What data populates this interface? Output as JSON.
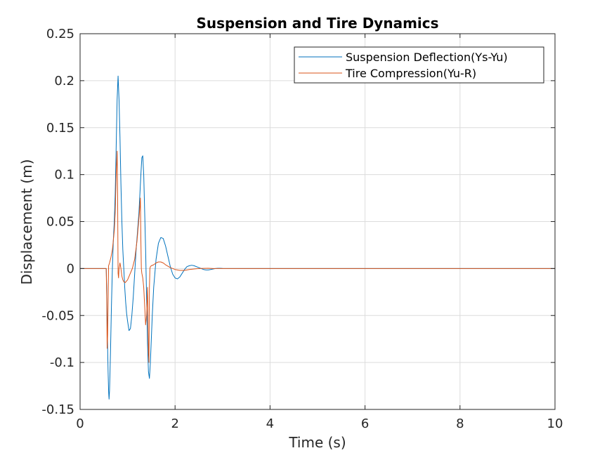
{
  "chart_data": {
    "type": "line",
    "title": "Suspension and Tire Dynamics",
    "xlabel": "Time (s)",
    "ylabel": "Displacement (m)",
    "xlim": [
      0,
      10
    ],
    "ylim": [
      -0.15,
      0.25
    ],
    "xticks": [
      0,
      2,
      4,
      6,
      8,
      10
    ],
    "yticks": [
      -0.15,
      -0.1,
      -0.05,
      0,
      0.05,
      0.1,
      0.15,
      0.2,
      0.25
    ],
    "xtick_labels": [
      "0",
      "2",
      "4",
      "6",
      "8",
      "10"
    ],
    "ytick_labels": [
      "-0.15",
      "-0.1",
      "-0.05",
      "0",
      "0.05",
      "0.1",
      "0.15",
      "0.2",
      "0.25"
    ],
    "grid": true,
    "legend_position": "top-right",
    "series": [
      {
        "name": "Suspension Deflection(Ys-Yu)",
        "color": "#0072BD",
        "x": [
          0,
          0.55,
          0.56,
          0.57,
          0.58,
          0.59,
          0.6,
          0.61,
          0.62,
          0.64,
          0.66,
          0.68,
          0.7,
          0.72,
          0.74,
          0.76,
          0.78,
          0.8,
          0.82,
          0.84,
          0.86,
          0.88,
          0.9,
          0.92,
          0.94,
          0.96,
          0.98,
          1.0,
          1.03,
          1.06,
          1.09,
          1.12,
          1.15,
          1.18,
          1.21,
          1.24,
          1.26,
          1.28,
          1.3,
          1.32,
          1.34,
          1.36,
          1.38,
          1.4,
          1.42,
          1.44,
          1.46,
          1.48,
          1.5,
          1.52,
          1.55,
          1.6,
          1.65,
          1.7,
          1.75,
          1.8,
          1.85,
          1.9,
          1.95,
          2.0,
          2.05,
          2.1,
          2.15,
          2.2,
          2.25,
          2.3,
          2.35,
          2.4,
          2.45,
          2.5,
          2.55,
          2.6,
          2.65,
          2.7,
          2.75,
          2.8,
          2.85,
          2.9,
          2.95,
          3.0,
          3.5,
          4.0,
          6.0,
          8.0,
          10.0
        ],
        "y": [
          0,
          0,
          -0.02,
          -0.06,
          -0.085,
          -0.11,
          -0.13,
          -0.139,
          -0.13,
          -0.09,
          -0.04,
          0.0,
          0.03,
          0.05,
          0.08,
          0.13,
          0.18,
          0.205,
          0.18,
          0.14,
          0.09,
          0.05,
          0.02,
          0.0,
          -0.02,
          -0.036,
          -0.048,
          -0.056,
          -0.066,
          -0.064,
          -0.05,
          -0.03,
          -0.005,
          0.02,
          0.04,
          0.06,
          0.08,
          0.1,
          0.118,
          0.12,
          0.1,
          0.06,
          0.02,
          -0.03,
          -0.08,
          -0.11,
          -0.117,
          -0.1,
          -0.075,
          -0.05,
          -0.02,
          0.01,
          0.027,
          0.033,
          0.032,
          0.024,
          0.013,
          0.002,
          -0.006,
          -0.01,
          -0.011,
          -0.009,
          -0.005,
          -0.001,
          0.002,
          0.003,
          0.0035,
          0.003,
          0.002,
          0.001,
          0.0,
          -0.001,
          -0.0015,
          -0.0015,
          -0.001,
          -0.0005,
          0.0,
          0.0003,
          0.0003,
          0.0001,
          0.0,
          0,
          0,
          0,
          0
        ]
      },
      {
        "name": "Tire Compression(Yu-R)",
        "color": "#D95319",
        "x": [
          0,
          0.5,
          0.55,
          0.56,
          0.57,
          0.58,
          0.6,
          0.62,
          0.65,
          0.68,
          0.7,
          0.72,
          0.74,
          0.76,
          0.78,
          0.79,
          0.8,
          0.81,
          0.82,
          0.84,
          0.86,
          0.88,
          0.9,
          0.92,
          0.95,
          1.0,
          1.05,
          1.1,
          1.15,
          1.2,
          1.25,
          1.27,
          1.28,
          1.29,
          1.3,
          1.32,
          1.34,
          1.36,
          1.38,
          1.4,
          1.42,
          1.44,
          1.45,
          1.46,
          1.47,
          1.48,
          1.5,
          1.55,
          1.6,
          1.65,
          1.7,
          1.75,
          1.8,
          1.9,
          2.0,
          2.1,
          2.2,
          2.3,
          2.4,
          2.5,
          2.6,
          2.7,
          2.8,
          3.0,
          4.0,
          6.0,
          8.0,
          10.0
        ],
        "y": [
          0,
          0,
          0.0,
          -0.03,
          -0.085,
          -0.07,
          0.003,
          0.006,
          0.012,
          0.02,
          0.03,
          0.04,
          0.06,
          0.1,
          0.125,
          0.08,
          -0.005,
          -0.01,
          0.0,
          0.006,
          0.0,
          -0.008,
          -0.012,
          -0.014,
          -0.015,
          -0.012,
          -0.006,
          0.0,
          0.01,
          0.03,
          0.06,
          0.075,
          0.03,
          0.0,
          -0.005,
          -0.01,
          -0.02,
          -0.04,
          -0.06,
          -0.05,
          -0.02,
          -0.09,
          -0.1,
          -0.02,
          0.0,
          0.002,
          0.003,
          0.004,
          0.006,
          0.007,
          0.007,
          0.006,
          0.004,
          0.001,
          -0.001,
          -0.002,
          -0.002,
          -0.001,
          -0.0005,
          0.0,
          0.0002,
          0.0003,
          0.0,
          0.0,
          0,
          0,
          0,
          0
        ]
      }
    ]
  }
}
